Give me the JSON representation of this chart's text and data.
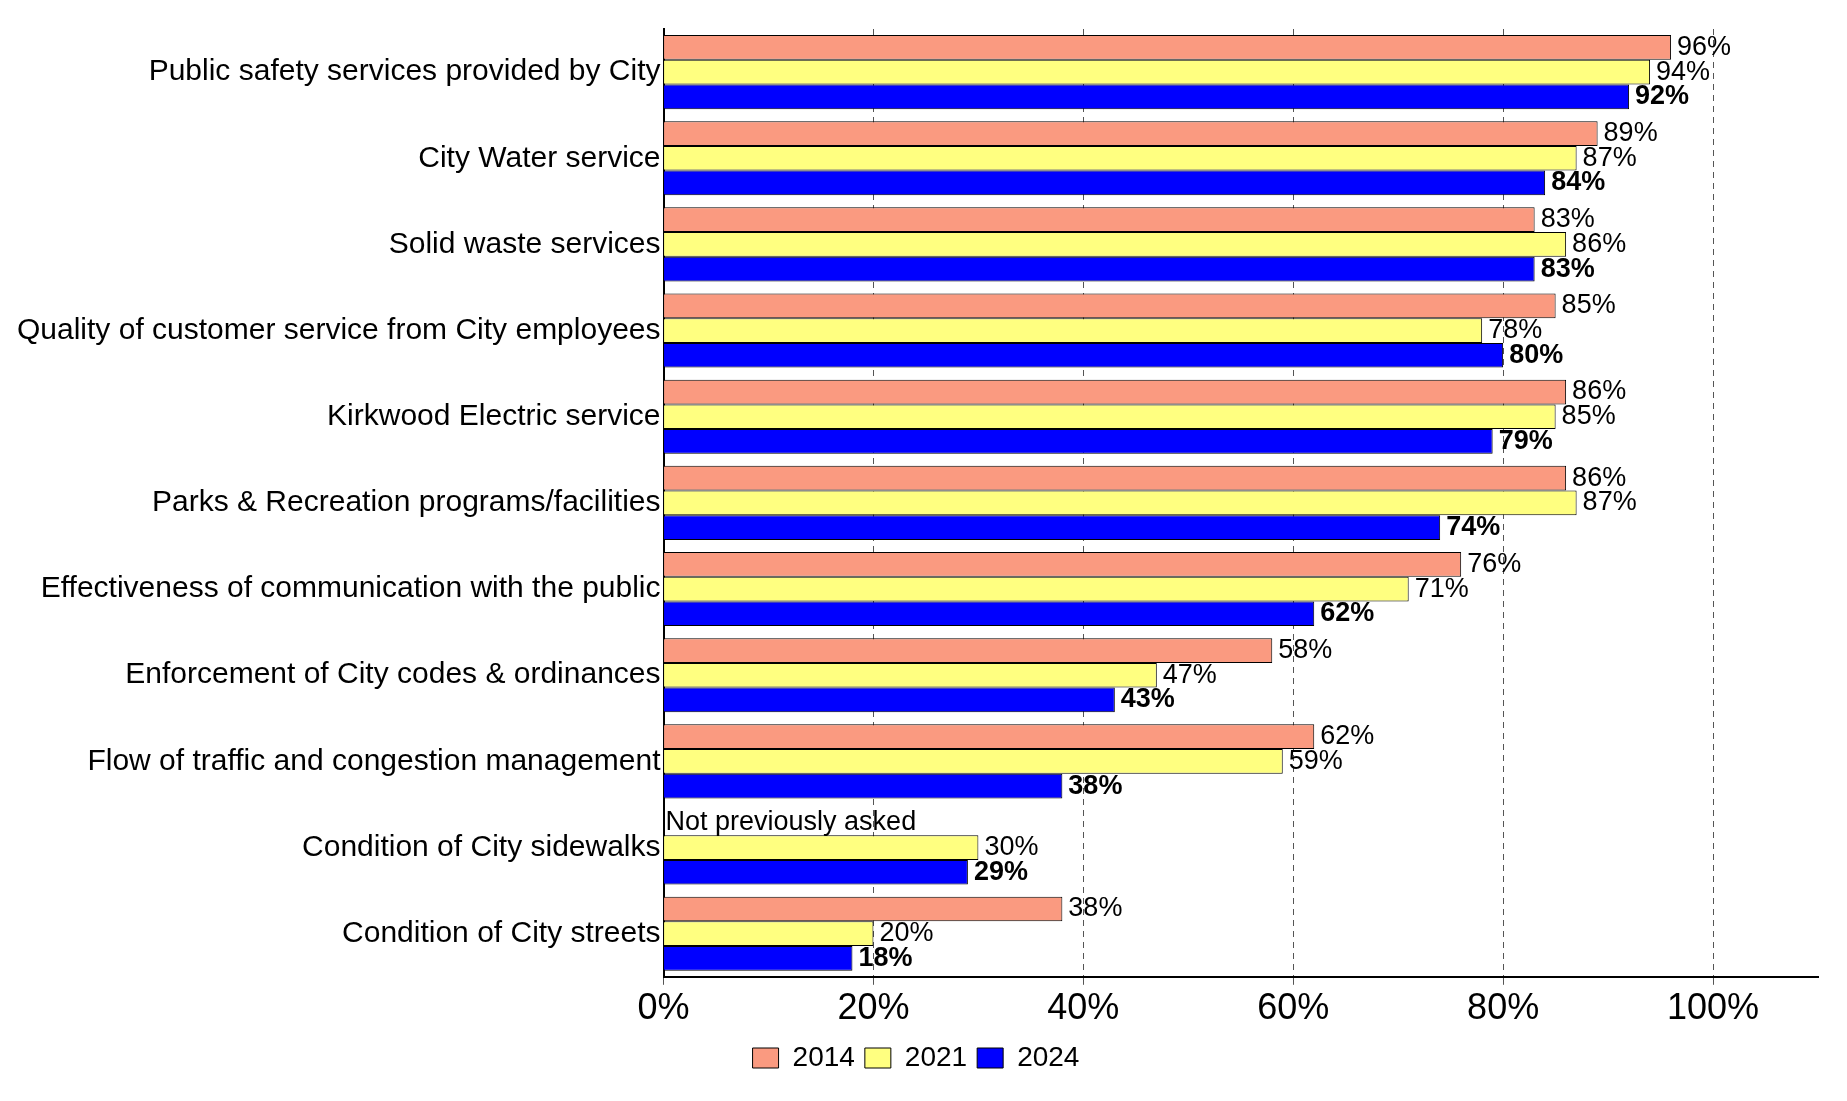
{
  "chart_data": {
    "type": "bar",
    "orientation": "horizontal",
    "categories": [
      "Public safety services provided by City",
      "City Water service",
      "Solid waste services",
      "Quality of customer service from City employees",
      "Kirkwood Electric service",
      "Parks & Recreation programs/facilities",
      "Effectiveness of communication with the public",
      "Enforcement of City codes & ordinances",
      "Flow of traffic and congestion management",
      "Condition of City sidewalks",
      "Condition of City streets"
    ],
    "series": [
      {
        "name": "2014",
        "color": "#fa9a80",
        "values": [
          96,
          89,
          83,
          85,
          86,
          86,
          76,
          58,
          62,
          null,
          38
        ],
        "value_labels": [
          "96%",
          "89%",
          "83%",
          "85%",
          "86%",
          "86%",
          "76%",
          "58%",
          "62%",
          null,
          "38%"
        ]
      },
      {
        "name": "2021",
        "color": "#ffff80",
        "values": [
          94,
          87,
          86,
          78,
          85,
          87,
          71,
          47,
          59,
          30,
          20
        ],
        "value_labels": [
          "94%",
          "87%",
          "86%",
          "78%",
          "85%",
          "87%",
          "71%",
          "47%",
          "59%",
          "30%",
          "20%"
        ]
      },
      {
        "name": "2024",
        "color": "#0000ff",
        "values": [
          92,
          84,
          83,
          80,
          79,
          74,
          62,
          43,
          38,
          29,
          18
        ],
        "value_labels": [
          "92%",
          "84%",
          "83%",
          "80%",
          "79%",
          "74%",
          "62%",
          "43%",
          "38%",
          "29%",
          "18%"
        ]
      }
    ],
    "xlim": [
      0,
      110
    ],
    "xticks": [
      {
        "value": 0,
        "label": "0%"
      },
      {
        "value": 20,
        "label": "20%"
      },
      {
        "value": 40,
        "label": "40%"
      },
      {
        "value": 60,
        "label": "60%"
      },
      {
        "value": 80,
        "label": "80%"
      },
      {
        "value": 100,
        "label": "100%"
      }
    ],
    "grid": "x",
    "legend": "bottom",
    "annotations": [
      {
        "text": "Not previously asked",
        "x": 0,
        "y": "Condition of City sidewalks"
      }
    ]
  }
}
